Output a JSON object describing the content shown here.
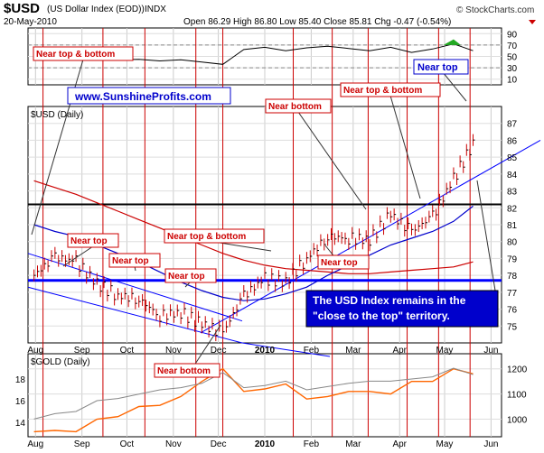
{
  "header": {
    "symbol": "$USD",
    "description": "(US Dollar Index (EOD))",
    "exchange": "INDX",
    "date": "20-May-2010",
    "quote": "Open 86.29  High 86.80  Low 85.40  Close 85.81  Chg -0.47 (-0.54%)",
    "credit": "© StockCharts.com"
  },
  "panels": {
    "rsi_ticks": [
      "90",
      "70",
      "50",
      "30",
      "10"
    ],
    "usd_title": "$USD (Daily)",
    "usd_ticks": [
      "87",
      "86",
      "85",
      "84",
      "83",
      "82",
      "81",
      "80",
      "79",
      "78",
      "77",
      "76",
      "75"
    ],
    "gold_title": "$GOLD (Daily)",
    "gold_left_ticks": [
      "18",
      "16",
      "14"
    ],
    "gold_right_ticks": [
      "1200",
      "1100",
      "1000"
    ]
  },
  "x_labels": [
    "Aug",
    "Sep",
    "Oct",
    "Nov",
    "Dec",
    "2010",
    "Feb",
    "Mar",
    "Apr",
    "May",
    "Jun"
  ],
  "annotations": {
    "red": [
      "Near top & bottom",
      "Near top",
      "Near top",
      "Near top",
      "Near top & bottom",
      "Near bottom",
      "Near top & bottom",
      "Near top",
      "Near bottom"
    ],
    "rsi_near_top": "Near top",
    "url": "www.SunshineProfits.com",
    "note_line1": "The USD Index remains in the",
    "note_line2": "\"close to the top\" territory."
  },
  "chart_data": {
    "type": "line",
    "x": [
      "Jul-31-2009",
      "Aug-14-2009",
      "Aug-28-2009",
      "Sep-11-2009",
      "Sep-25-2009",
      "Oct-09-2009",
      "Oct-23-2009",
      "Nov-06-2009",
      "Nov-20-2009",
      "Dec-04-2009",
      "Dec-18-2009",
      "Jan-01-2010",
      "Jan-15-2010",
      "Jan-29-2010",
      "Feb-12-2010",
      "Feb-26-2010",
      "Mar-12-2010",
      "Mar-26-2010",
      "Apr-09-2010",
      "Apr-23-2010",
      "May-07-2010",
      "May-20-2010"
    ],
    "series": [
      {
        "values": [
          78.0,
          79.1,
          78.8,
          77.5,
          76.8,
          76.6,
          75.6,
          75.8,
          75.1,
          74.6,
          76.8,
          77.8,
          77.6,
          79.0,
          80.3,
          80.2,
          80.1,
          81.6,
          80.6,
          81.5,
          83.7,
          85.8
        ]
      },
      {
        "values": [
          81.0,
          80.6,
          80.3,
          79.8,
          79.3,
          78.8,
          78.2,
          77.6,
          77.1,
          76.7,
          76.5,
          76.6,
          76.9,
          77.3,
          78.0,
          78.6,
          79.2,
          79.8,
          80.2,
          80.6,
          81.2,
          82.1
        ]
      },
      {
        "values": [
          83.6,
          83.2,
          82.8,
          82.3,
          81.8,
          81.3,
          80.8,
          80.3,
          79.8,
          79.3,
          78.9,
          78.6,
          78.4,
          78.3,
          78.2,
          78.1,
          78.1,
          78.2,
          78.3,
          78.4,
          78.5,
          78.8
        ]
      },
      {
        "values": [
          56,
          58,
          55,
          48,
          44,
          45,
          42,
          44,
          40,
          36,
          62,
          66,
          60,
          65,
          68,
          64,
          60,
          66,
          57,
          63,
          72,
          60
        ]
      },
      {
        "values": [
          950,
          955,
          950,
          1000,
          1010,
          1050,
          1055,
          1090,
          1150,
          1200,
          1110,
          1120,
          1140,
          1080,
          1090,
          1110,
          1110,
          1100,
          1150,
          1150,
          1200,
          1180
        ]
      }
    ],
    "usd_ylim": [
      74,
      88
    ],
    "rsi_ylim": [
      0,
      100
    ],
    "gold_ylim": [
      930,
      1260
    ],
    "horizontal_lines": [
      82.2,
      77.7
    ],
    "grid": true
  },
  "colors": {
    "price": "#cc0000",
    "sma50": "#0000cc",
    "sma200": "#cc0000",
    "gold": "#ff6600",
    "ratio": "#888888",
    "vline": "#cc0000",
    "accent_blue": "#0000cc"
  }
}
